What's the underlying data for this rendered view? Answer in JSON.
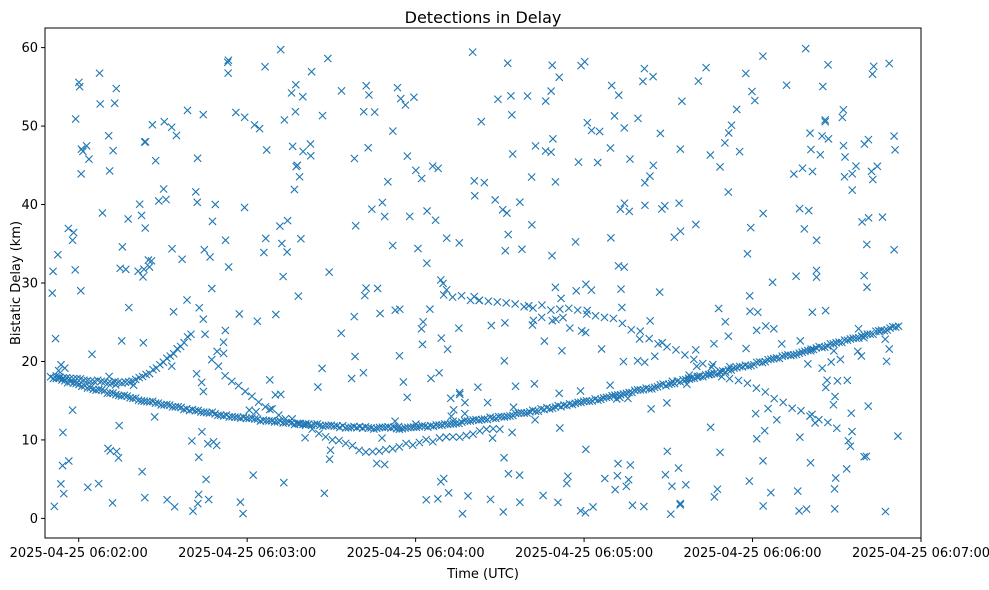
{
  "chart_data": {
    "type": "scatter",
    "title": "Detections in Delay",
    "xlabel": "Time (UTC)",
    "ylabel": "Bistatic Delay (km)",
    "marker": "x",
    "color": "#1f77b4",
    "grid": false,
    "legend": "none",
    "xlim": [
      "2025-04-25 06:01:48",
      "2025-04-25 06:07:00"
    ],
    "ylim": [
      -2.5,
      62.5
    ],
    "x_ticks": [
      "2025-04-25 06:02:00",
      "2025-04-25 06:03:00",
      "2025-04-25 06:04:00",
      "2025-04-25 06:05:00",
      "2025-04-25 06:06:00",
      "2025-04-25 06:07:00"
    ],
    "y_ticks": [
      "0",
      "10",
      "20",
      "30",
      "40",
      "50",
      "60"
    ],
    "tracks": [
      {
        "time_start": "2025-04-25 06:01:50",
        "time_end": "2025-04-25 06:06:52",
        "delay_start": 18.0,
        "delay_min": 11.5,
        "time_min": "2025-04-25 06:03:55",
        "delay_end": 24.5
      },
      {
        "time_start": "2025-04-25 06:01:52",
        "time_end": "2025-04-25 06:02:40",
        "delay_start": 18.0,
        "delay_mid": 17.2,
        "delay_end": 23.5
      },
      {
        "time_start": "2025-04-25 06:02:45",
        "time_end": "2025-04-25 06:04:30",
        "delay_start": 23.5,
        "delay_mid": 8.5,
        "delay_end": 11.5
      },
      {
        "time_start": "2025-04-25 06:04:10",
        "time_end": "2025-04-25 06:06:30",
        "delay_start": 28.5,
        "delay_mid": 26.0,
        "delay_end": 11.5
      }
    ],
    "clutter": {
      "count": 540,
      "delay_range": [
        0.5,
        60
      ],
      "time_range": [
        "2025-04-25 06:01:50",
        "2025-04-25 06:06:52"
      ]
    }
  }
}
